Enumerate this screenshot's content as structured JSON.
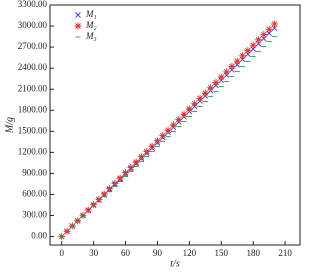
{
  "chart_data": {
    "type": "scatter",
    "xlabel": "t/s",
    "ylabel": "M/g",
    "xlim": [
      -11,
      224
    ],
    "ylim": [
      -120,
      3300
    ],
    "xticks": [
      0,
      30,
      60,
      90,
      120,
      150,
      180,
      210
    ],
    "yticks": [
      {
        "value": 0,
        "label": "0.00"
      },
      {
        "value": 300,
        "label": "300.00"
      },
      {
        "value": 600,
        "label": "600.00"
      },
      {
        "value": 900,
        "label": "900.00"
      },
      {
        "value": 1200,
        "label": "1200.00"
      },
      {
        "value": 1500,
        "label": "1500.00"
      },
      {
        "value": 1800,
        "label": "1800.00"
      },
      {
        "value": 2100,
        "label": "2100.00"
      },
      {
        "value": 2400,
        "label": "2400.00"
      },
      {
        "value": 2700,
        "label": "2700.00"
      },
      {
        "value": 3000,
        "label": "3000.00"
      },
      {
        "value": 3300,
        "label": "3300.00"
      }
    ],
    "legend": "upper left",
    "x": [
      0,
      5,
      10,
      15,
      20,
      25,
      30,
      35,
      40,
      45,
      50,
      55,
      60,
      65,
      70,
      75,
      80,
      85,
      90,
      95,
      100,
      105,
      110,
      115,
      120,
      125,
      130,
      135,
      140,
      145,
      150,
      155,
      160,
      165,
      170,
      175,
      180,
      185,
      190,
      195,
      200
    ],
    "series": [
      {
        "name": "M₁",
        "color": "#3b3bd6",
        "marker": "x",
        "values": [
          0,
          74,
          149,
          223,
          297,
          371,
          446,
          520,
          594,
          668,
          743,
          817,
          891,
          965,
          1040,
          1114,
          1188,
          1262,
          1337,
          1411,
          1485,
          1559,
          1634,
          1708,
          1782,
          1856,
          1931,
          2005,
          2079,
          2153,
          2228,
          2302,
          2376,
          2450,
          2525,
          2599,
          2673,
          2747,
          2822,
          2896,
          2970
        ]
      },
      {
        "name": "M₂",
        "color": "#e03030",
        "marker": "star",
        "values": [
          0,
          76,
          152,
          227,
          303,
          379,
          455,
          530,
          606,
          682,
          758,
          833,
          909,
          985,
          1061,
          1136,
          1212,
          1288,
          1364,
          1439,
          1515,
          1591,
          1667,
          1742,
          1818,
          1894,
          1970,
          2045,
          2121,
          2197,
          2273,
          2348,
          2424,
          2500,
          2576,
          2651,
          2727,
          2803,
          2879,
          2954,
          3030
        ]
      },
      {
        "name": "M₃",
        "color": "#2e9a4a",
        "marker": "dash",
        "values": [
          0,
          71,
          143,
          214,
          285,
          356,
          428,
          499,
          570,
          641,
          713,
          784,
          855,
          926,
          998,
          1069,
          1140,
          1211,
          1283,
          1354,
          1425,
          1496,
          1568,
          1639,
          1710,
          1781,
          1853,
          1924,
          1995,
          2066,
          2138,
          2209,
          2280,
          2351,
          2423,
          2494,
          2565,
          2636,
          2708,
          2779,
          2850
        ]
      }
    ]
  }
}
